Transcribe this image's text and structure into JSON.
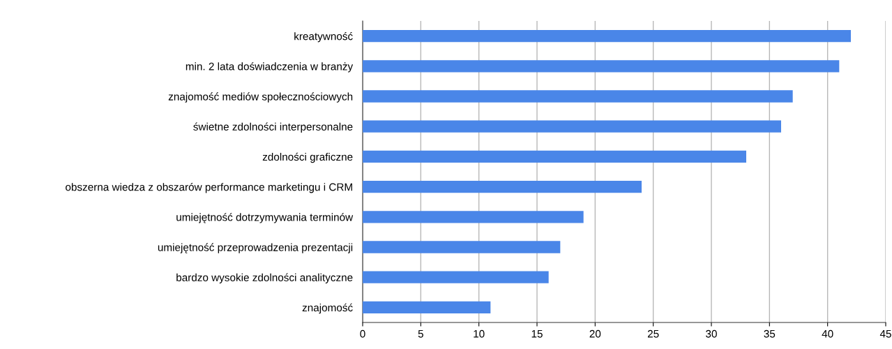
{
  "chart_data": {
    "type": "bar",
    "orientation": "horizontal",
    "categories": [
      "kreatywność",
      "min. 2 lata doświadczenia w branży",
      "znajomość mediów społecznościowych",
      "świetne zdolności interpersonalne",
      "zdolności graficzne",
      "obszerna wiedza z obszarów performance marketingu i CRM",
      "umiejętność dotrzymywania terminów",
      "umiejętność przeprowadzenia prezentacji",
      "bardzo wysokie zdolności analityczne",
      "znajomość"
    ],
    "values": [
      42,
      41,
      37,
      36,
      33,
      24,
      19,
      17,
      16,
      11
    ],
    "color": "#4a86e8",
    "xlim": [
      0,
      45
    ],
    "xticks": [
      0,
      5,
      10,
      15,
      20,
      25,
      30,
      35,
      40,
      45
    ],
    "grid": "x",
    "legend": false
  }
}
